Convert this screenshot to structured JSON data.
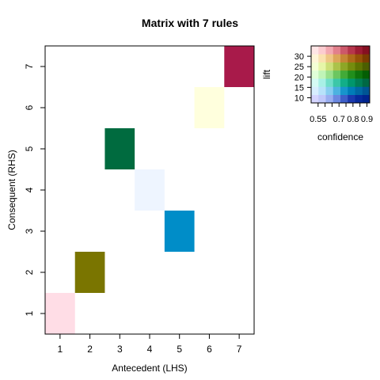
{
  "chart_data": {
    "type": "heatmap",
    "title": "Matrix with 7 rules",
    "xlabel": "Antecedent (LHS)",
    "ylabel": "Consequent (RHS)",
    "x_ticks": [
      "1",
      "2",
      "3",
      "4",
      "5",
      "6",
      "7"
    ],
    "y_ticks": [
      "1",
      "2",
      "3",
      "4",
      "5",
      "6",
      "7"
    ],
    "xlim": [
      0.5,
      7.5
    ],
    "ylim": [
      0.5,
      7.5
    ],
    "cells": [
      {
        "x": 1,
        "y": 1,
        "color": "#FFDDE6"
      },
      {
        "x": 2,
        "y": 2,
        "color": "#7A7500"
      },
      {
        "x": 3,
        "y": 5,
        "color": "#006B3F"
      },
      {
        "x": 4,
        "y": 4,
        "color": "#EEF5FF"
      },
      {
        "x": 5,
        "y": 3,
        "color": "#008DC8"
      },
      {
        "x": 6,
        "y": 6,
        "color": "#FFFFDD"
      },
      {
        "x": 7,
        "y": 7,
        "color": "#A81A4A"
      }
    ],
    "legend": {
      "x_label": "confidence",
      "y_label": "lift",
      "x_ticks": [
        "0.55",
        "0.7",
        "0.8",
        "0.9"
      ],
      "x_tick_values": [
        0.55,
        0.7,
        0.8,
        0.9
      ],
      "x_range": [
        0.5,
        0.92
      ],
      "y_ticks": [
        "10",
        "15",
        "20",
        "25",
        "30"
      ],
      "y_tick_values": [
        10,
        15,
        20,
        25,
        30
      ],
      "y_range": [
        7.5,
        35
      ],
      "grid_rows": [
        [
          "#D5D5FF",
          "#C0C8FA",
          "#99AEF0",
          "#6B88E0",
          "#3D5EC8",
          "#1B3AAE",
          "#072B9C",
          "#00248E"
        ],
        [
          "#D8EEFF",
          "#B8E2FA",
          "#88CDF0",
          "#4DB2E0",
          "#1795CC",
          "#007DB8",
          "#0068A4",
          "#005594"
        ],
        [
          "#D5FAF5",
          "#A8F0E6",
          "#70DEC9",
          "#3CC7A8",
          "#12AE88",
          "#00966C",
          "#007E55",
          "#006844"
        ],
        [
          "#E0FFD8",
          "#C0F4B8",
          "#9AE08C",
          "#6CC660",
          "#42AA38",
          "#218E1C",
          "#0E740C",
          "#045E04"
        ],
        [
          "#F5FFD5",
          "#E6F6A8",
          "#CCDF78",
          "#ACC24A",
          "#8EA626",
          "#758C0E",
          "#5F7402",
          "#4C5E00"
        ],
        [
          "#FFF5D8",
          "#FAE2B0",
          "#EEC684",
          "#DCA65A",
          "#C68636",
          "#AE6A1A",
          "#965208",
          "#7C3C00"
        ],
        [
          "#FFE6E6",
          "#FCCCD0",
          "#F2A8B0",
          "#E2808C",
          "#CC586A",
          "#B6364C",
          "#9E1C34",
          "#861022"
        ]
      ]
    }
  }
}
